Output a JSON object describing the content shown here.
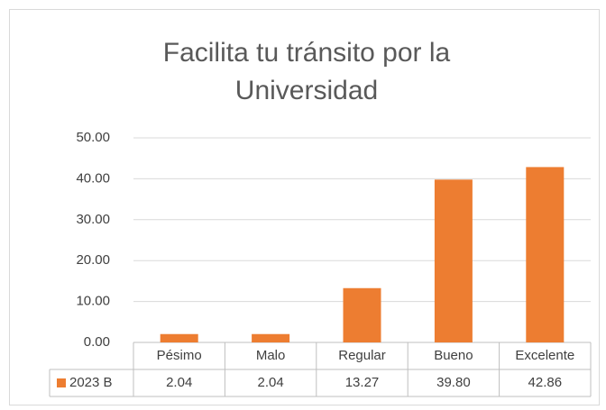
{
  "chart_data": {
    "type": "bar",
    "title": "Facilita tu tránsito por la Universidad",
    "categories": [
      "Pésimo",
      "Malo",
      "Regular",
      "Bueno",
      "Excelente"
    ],
    "series": [
      {
        "name": "2023 B",
        "color": "#ed7d31",
        "values": [
          2.04,
          2.04,
          13.27,
          39.8,
          42.86
        ],
        "value_labels": [
          "2.04",
          "2.04",
          "13.27",
          "39.80",
          "42.86"
        ]
      }
    ],
    "ylim": [
      0,
      50
    ],
    "yticks": [
      {
        "value": 0,
        "label": "0.00"
      },
      {
        "value": 10,
        "label": "10.00"
      },
      {
        "value": 20,
        "label": "20.00"
      },
      {
        "value": 30,
        "label": "30.00"
      },
      {
        "value": 40,
        "label": "40.00"
      },
      {
        "value": 50,
        "label": "50.00"
      }
    ],
    "grid": true
  }
}
